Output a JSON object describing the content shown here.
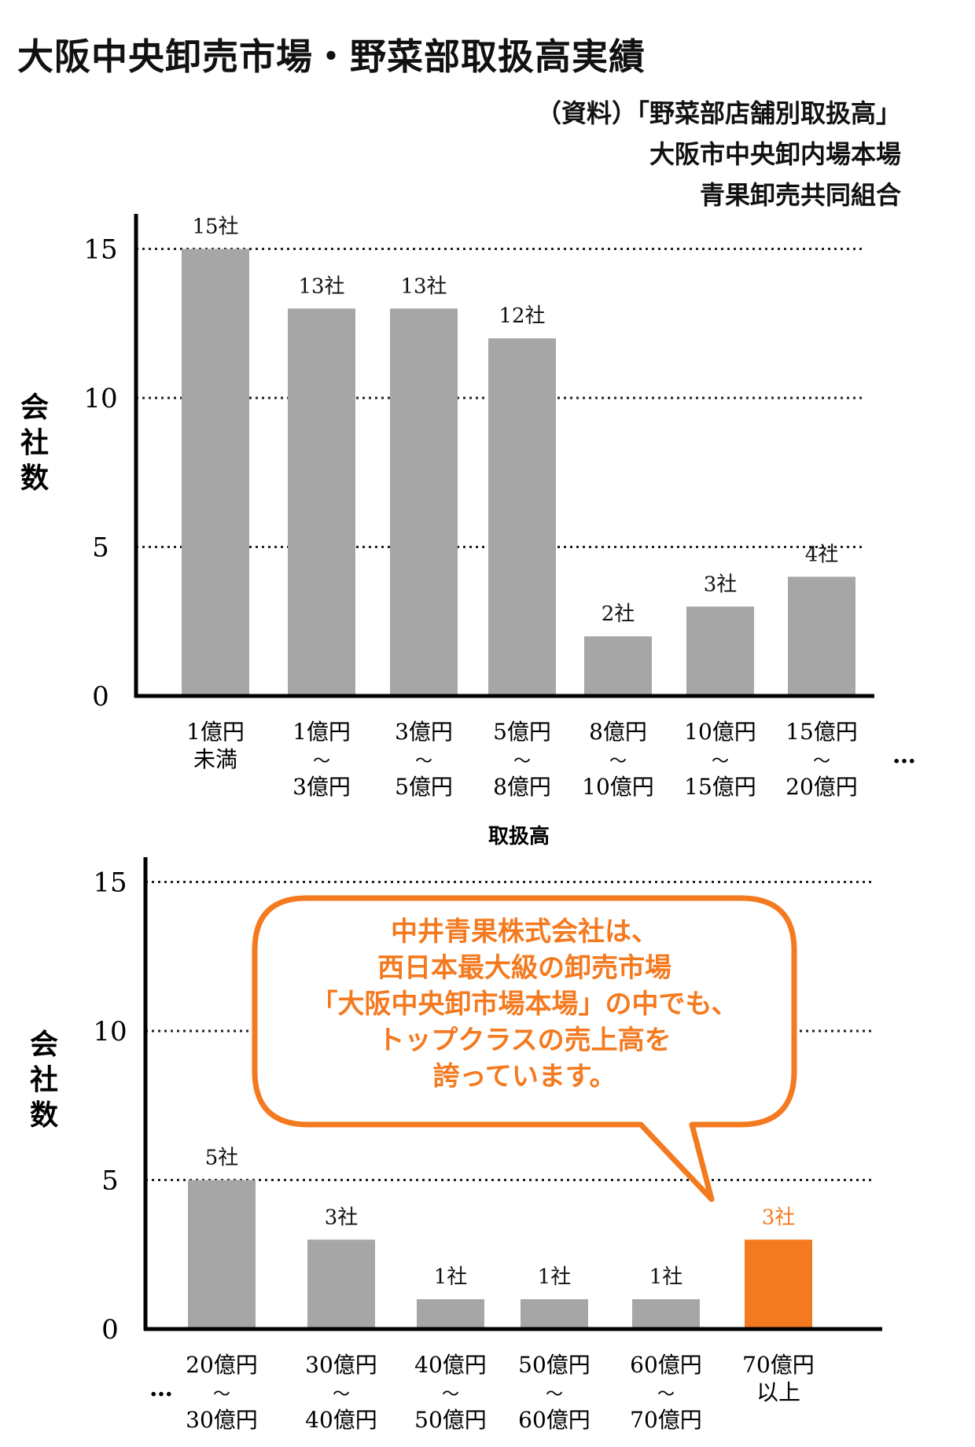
{
  "page": {
    "title": "大阪中央卸売市場・野菜部取扱高実績",
    "source_lines": [
      "（資料）「野菜部店舗別取扱高」",
      "大阪市中央卸内場本場",
      "青果卸売共同組合"
    ]
  },
  "chart_data": [
    {
      "type": "bar",
      "ylabel": "会社数",
      "xlabel": "取扱高",
      "ylim": [
        0,
        18
      ],
      "yticks": [
        0,
        5,
        10,
        15
      ],
      "gridlines": "dotted at 5, 10, 15",
      "categories": [
        [
          "1億円",
          "未満"
        ],
        [
          "1億円",
          "〜",
          "3億円"
        ],
        [
          "3億円",
          "〜",
          "5億円"
        ],
        [
          "5億円",
          "〜",
          "8億円"
        ],
        [
          "8億円",
          "〜",
          "10億円"
        ],
        [
          "10億円",
          "〜",
          "15億円"
        ],
        [
          "15億円",
          "〜",
          "20億円"
        ]
      ],
      "values": [
        15,
        13,
        13,
        12,
        2,
        3,
        4
      ],
      "data_labels": [
        "15社",
        "13社",
        "13社",
        "12社",
        "2社",
        "3社",
        "4社"
      ],
      "continuation": "…",
      "bar_color": "#a6a6a6"
    },
    {
      "type": "bar",
      "ylabel": "会社数",
      "ylim": [
        0,
        18
      ],
      "yticks": [
        0,
        5,
        10,
        15
      ],
      "gridlines": "dotted at 5, 10, 15",
      "categories": [
        [
          "20億円",
          "〜",
          "30億円"
        ],
        [
          "30億円",
          "〜",
          "40億円"
        ],
        [
          "40億円",
          "〜",
          "50億円"
        ],
        [
          "50億円",
          "〜",
          "60億円"
        ],
        [
          "60億円",
          "〜",
          "70億円"
        ],
        [
          "70億円",
          "以上"
        ]
      ],
      "values": [
        5,
        3,
        1,
        1,
        1,
        3
      ],
      "data_labels": [
        "5社",
        "3社",
        "1社",
        "1社",
        "1社",
        "3社"
      ],
      "leading": "…",
      "bar_color": "#a6a6a6",
      "highlight_index": 5,
      "highlight_color": "#f47a20",
      "callout": {
        "lines": [
          "中井青果株式会社は、",
          "西日本最大級の卸売市場",
          "「大阪中央卸市場本場」の中でも、",
          "トップクラスの売上高を",
          "誇っています。"
        ],
        "color": "#f47a20"
      }
    }
  ]
}
